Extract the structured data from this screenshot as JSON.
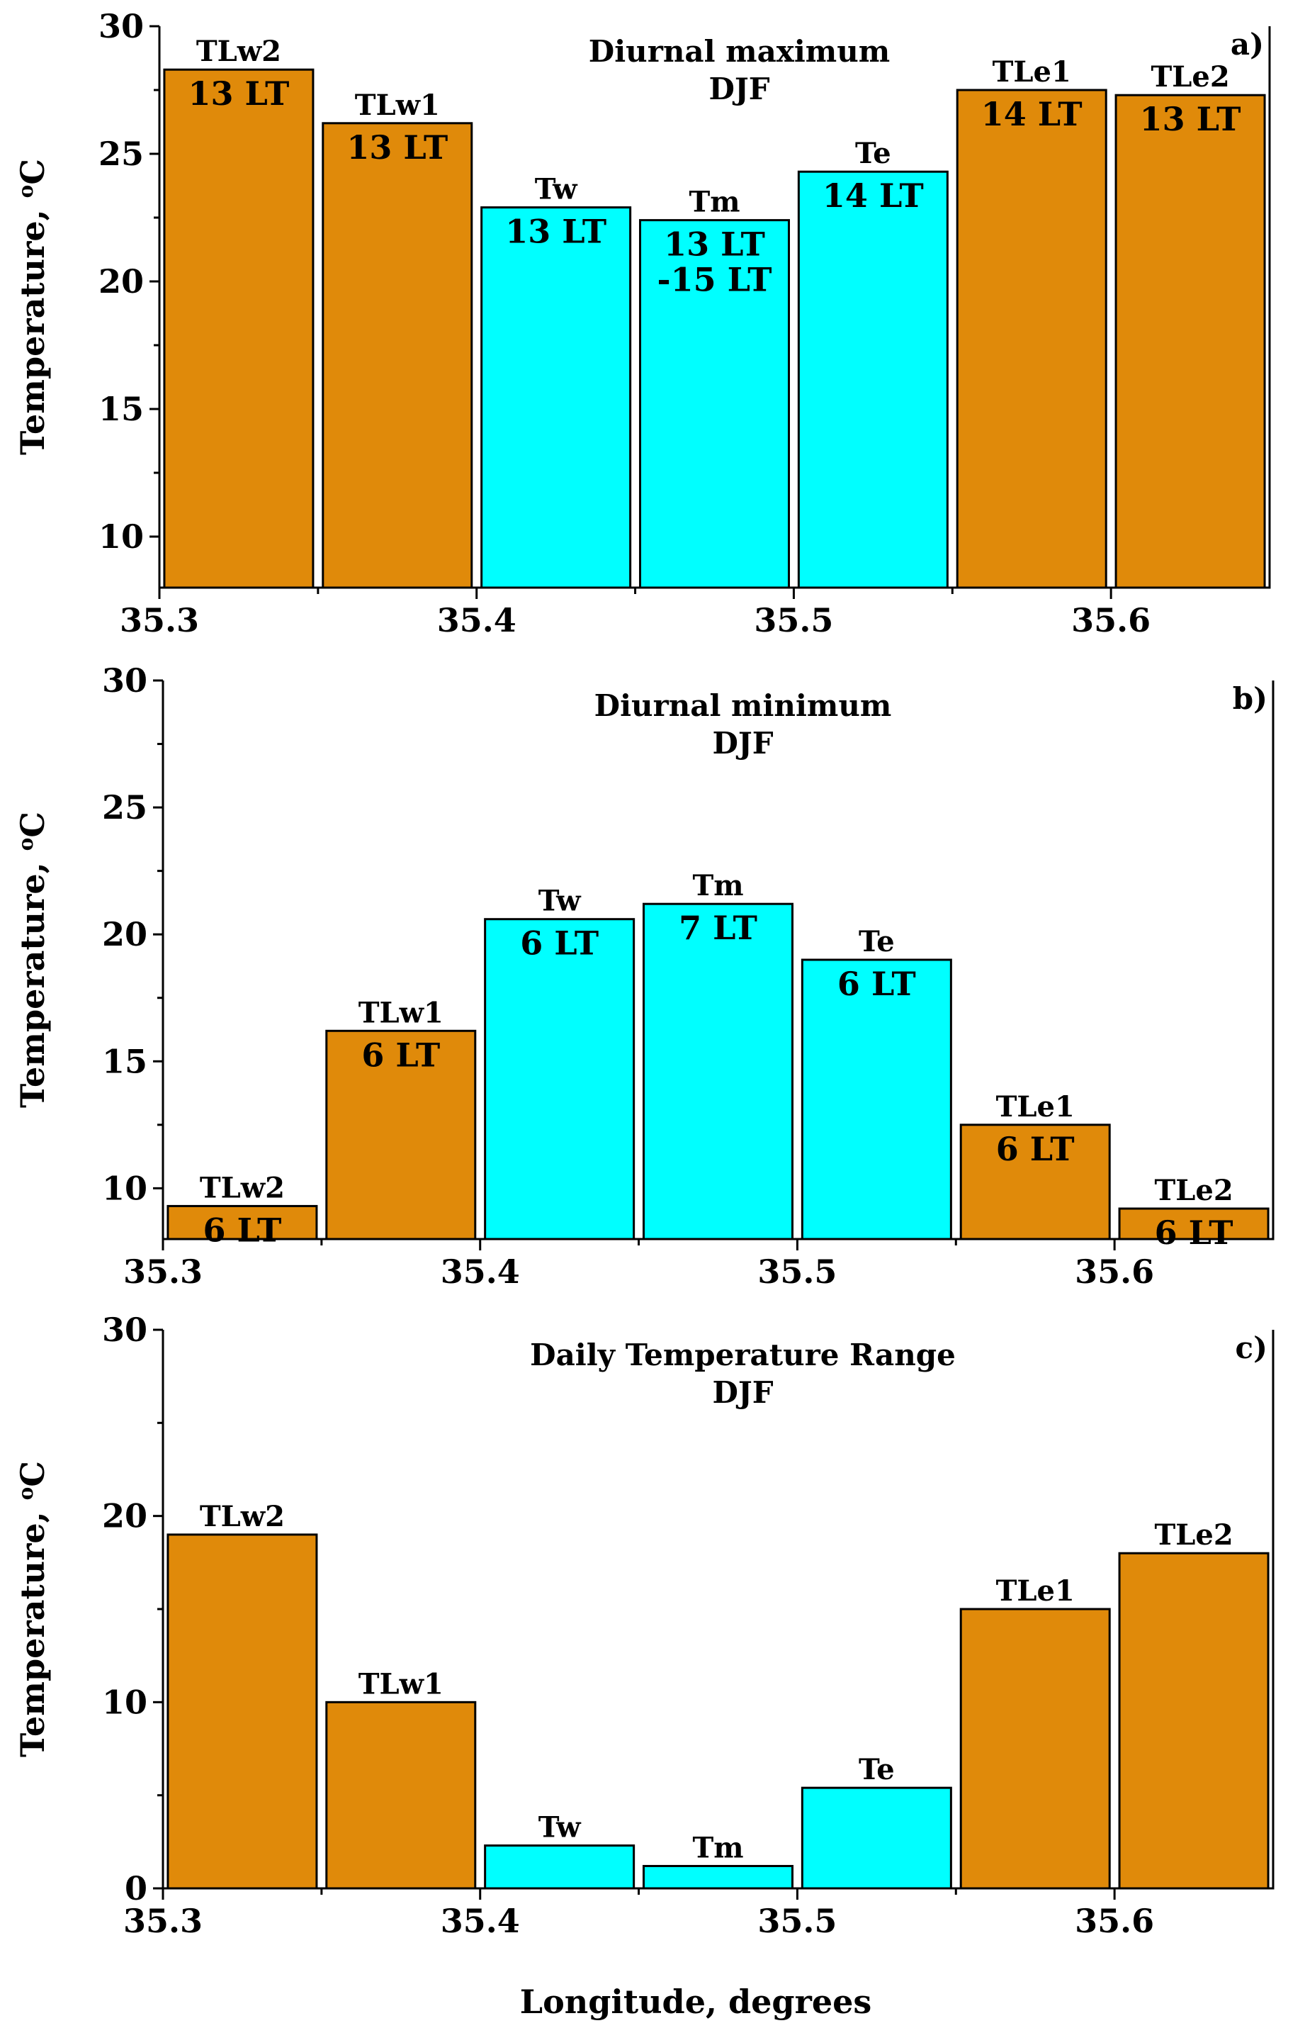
{
  "colors": {
    "land": "#E08A0A",
    "sea": "#00FFFF",
    "stroke": "#000000"
  },
  "x_axis_title": "Longitude,  degrees",
  "chart_data": [
    {
      "type": "bar",
      "panel_letter": "a)",
      "title": "Diurnal maximum",
      "subtitle": "DJF",
      "xlabel": "Longitude,  degrees",
      "ylabel_main": "Temperature,",
      "ylabel_sup": "o",
      "ylabel_unit": "C",
      "xlim": [
        35.3,
        35.65
      ],
      "ylim": [
        8,
        30
      ],
      "yticks": [
        10,
        15,
        20,
        25,
        30
      ],
      "xticks": [
        35.3,
        35.4,
        35.5,
        35.6
      ],
      "xtick_labels": [
        "35.3",
        "35.4",
        "35.5",
        "35.6"
      ],
      "bars": [
        {
          "name": "TLw2",
          "x": 35.325,
          "value": 28.3,
          "time": [
            "13 LT"
          ],
          "group": "land"
        },
        {
          "name": "TLw1",
          "x": 35.375,
          "value": 26.2,
          "time": [
            "13 LT"
          ],
          "group": "land"
        },
        {
          "name": "Tw",
          "x": 35.425,
          "value": 22.9,
          "time": [
            "13 LT"
          ],
          "group": "sea"
        },
        {
          "name": "Tm",
          "x": 35.475,
          "value": 22.4,
          "time": [
            "13 LT",
            "-15 LT"
          ],
          "group": "sea"
        },
        {
          "name": "Te",
          "x": 35.525,
          "value": 24.3,
          "time": [
            "14 LT"
          ],
          "group": "sea"
        },
        {
          "name": "TLe1",
          "x": 35.575,
          "value": 27.5,
          "time": [
            "14 LT"
          ],
          "group": "land"
        },
        {
          "name": "TLe2",
          "x": 35.625,
          "value": 27.3,
          "time": [
            "13 LT"
          ],
          "group": "land"
        }
      ]
    },
    {
      "type": "bar",
      "panel_letter": "b)",
      "title": "Diurnal minimum",
      "subtitle": "DJF",
      "xlabel": "",
      "ylabel_main": "Temperature,",
      "ylabel_sup": "o",
      "ylabel_unit": "C",
      "xlim": [
        35.3,
        35.65
      ],
      "ylim": [
        8,
        30
      ],
      "yticks": [
        10,
        15,
        20,
        25,
        30
      ],
      "xticks": [
        35.3,
        35.4,
        35.5,
        35.6
      ],
      "xtick_labels": [
        "35.3",
        "35.4",
        "35.5",
        "35.6"
      ],
      "bars": [
        {
          "name": "TLw2",
          "x": 35.325,
          "value": 9.3,
          "time": [
            "6 LT"
          ],
          "group": "land"
        },
        {
          "name": "TLw1",
          "x": 35.375,
          "value": 16.2,
          "time": [
            "6 LT"
          ],
          "group": "land"
        },
        {
          "name": "Tw",
          "x": 35.425,
          "value": 20.6,
          "time": [
            "6 LT"
          ],
          "group": "sea"
        },
        {
          "name": "Tm",
          "x": 35.475,
          "value": 21.2,
          "time": [
            "7 LT"
          ],
          "group": "sea"
        },
        {
          "name": "Te",
          "x": 35.525,
          "value": 19.0,
          "time": [
            "6 LT"
          ],
          "group": "sea"
        },
        {
          "name": "TLe1",
          "x": 35.575,
          "value": 12.5,
          "time": [
            "6 LT"
          ],
          "group": "land"
        },
        {
          "name": "TLe2",
          "x": 35.625,
          "value": 9.2,
          "time": [
            "6 LT"
          ],
          "group": "land"
        }
      ]
    },
    {
      "type": "bar",
      "panel_letter": "c)",
      "title": "Daily Temperature Range",
      "subtitle": "DJF",
      "xlabel": "Longitude,  degrees",
      "ylabel_main": "Temperature,",
      "ylabel_sup": "o",
      "ylabel_unit": "C",
      "xlim": [
        35.3,
        35.65
      ],
      "ylim": [
        0,
        30
      ],
      "yticks": [
        0,
        10,
        20,
        30
      ],
      "xticks": [
        35.3,
        35.4,
        35.5,
        35.6
      ],
      "xtick_labels": [
        "35.3",
        "35.4",
        "35.5",
        "35.6"
      ],
      "bars": [
        {
          "name": "TLw2",
          "x": 35.325,
          "value": 19.0,
          "time": [],
          "group": "land"
        },
        {
          "name": "TLw1",
          "x": 35.375,
          "value": 10.0,
          "time": [],
          "group": "land"
        },
        {
          "name": "Tw",
          "x": 35.425,
          "value": 2.3,
          "time": [],
          "group": "sea"
        },
        {
          "name": "Tm",
          "x": 35.475,
          "value": 1.2,
          "time": [],
          "group": "sea"
        },
        {
          "name": "Te",
          "x": 35.525,
          "value": 5.4,
          "time": [],
          "group": "sea"
        },
        {
          "name": "TLe1",
          "x": 35.575,
          "value": 15.0,
          "time": [],
          "group": "land"
        },
        {
          "name": "TLe2",
          "x": 35.625,
          "value": 18.0,
          "time": [],
          "group": "land"
        }
      ]
    }
  ]
}
